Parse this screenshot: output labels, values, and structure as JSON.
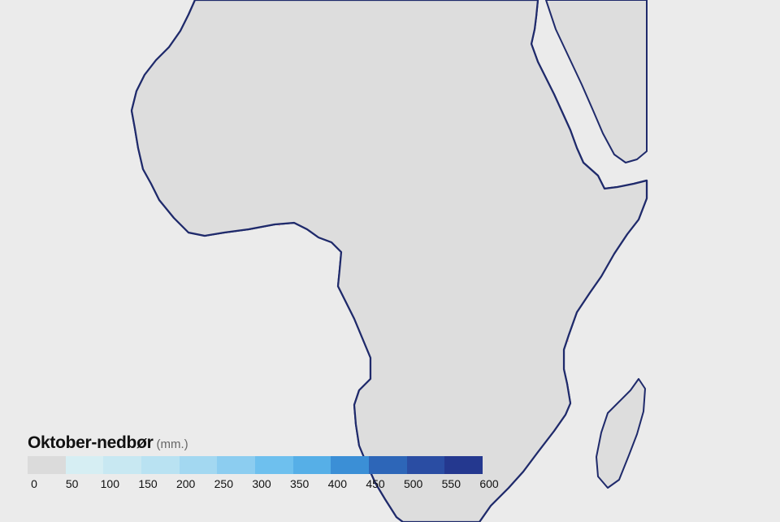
{
  "map": {
    "colors": {
      "background": "#ebebeb",
      "land": "#dddddd",
      "coastline": "#1f2a6b",
      "borders": "#f3a5b5"
    },
    "rain_colors": [
      "#dbdbdb",
      "#d6eef3",
      "#c8e8f2",
      "#b9e2f2",
      "#a3d8f1",
      "#8ccdf0",
      "#6ec0ee",
      "#56afe7",
      "#3b8fd6",
      "#2d66b8",
      "#2a4da3",
      "#24388f"
    ]
  },
  "legend": {
    "title": "Oktober-nedbør",
    "unit": "(mm.)",
    "ticks": [
      "0",
      "50",
      "100",
      "150",
      "200",
      "250",
      "300",
      "350",
      "400",
      "450",
      "500",
      "550",
      "600"
    ],
    "colors": [
      "#dbdbdb",
      "#d6eef3",
      "#c8e8f2",
      "#b9e2f2",
      "#a3d8f1",
      "#8ccdf0",
      "#6ec0ee",
      "#56afe7",
      "#3b8fd6",
      "#2d66b8",
      "#2a4da3",
      "#24388f"
    ]
  }
}
